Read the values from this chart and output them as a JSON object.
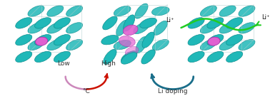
{
  "fig_width": 3.78,
  "fig_height": 1.52,
  "dpi": 100,
  "bg_color": "#ffffff",
  "teal_color": "#20b8b8",
  "teal_edge": "#0d9090",
  "pink_color": "#e060d0",
  "pink_edge": "#aa30aa",
  "green_color": "#22cc22",
  "dark_teal_arrow": "#1a6e8a",
  "red_arrow": "#cc1100",
  "pink_arc_color": "#cc88bb",
  "label_low": "Low",
  "label_high": "High",
  "label_deg": "°C",
  "label_li_doping": "Li doping",
  "label_li_plus": "Li⁺"
}
